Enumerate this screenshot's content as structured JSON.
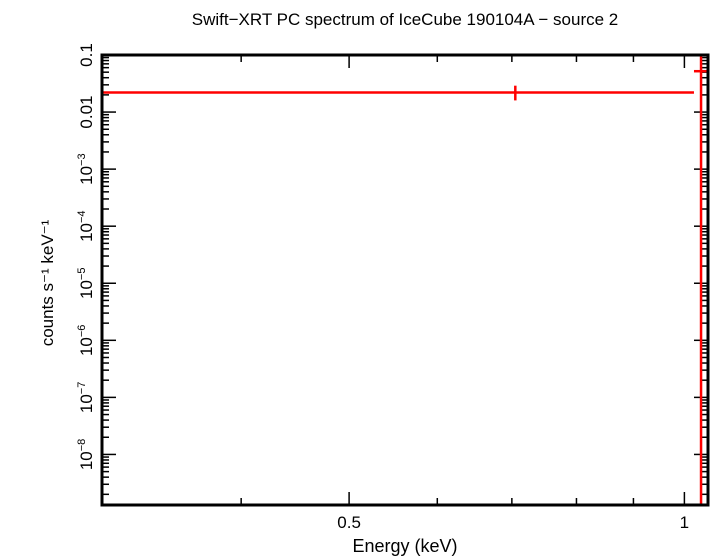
{
  "chart_data": {
    "type": "scatter",
    "title": "Swift−XRT PC spectrum of IceCube 190104A − source 2",
    "xlabel": "Energy (keV)",
    "ylabel": "counts s⁻¹ keV⁻¹",
    "x_scale": "log",
    "y_scale": "log",
    "xlim": [
      0.3,
      1.05
    ],
    "ylim": [
      1.3e-09,
      0.1
    ],
    "x_ticks": [
      {
        "value": 0.5,
        "label": "0.5"
      },
      {
        "value": 1,
        "label": "1"
      }
    ],
    "y_ticks": [
      {
        "value": 0.1,
        "base": "0.1",
        "exp": ""
      },
      {
        "value": 0.01,
        "base": "0.01",
        "exp": ""
      },
      {
        "value": 0.001,
        "base": "10",
        "exp": "−3"
      },
      {
        "value": 0.0001,
        "base": "10",
        "exp": "−4"
      },
      {
        "value": 1e-05,
        "base": "10",
        "exp": "−5"
      },
      {
        "value": 1e-06,
        "base": "10",
        "exp": "−6"
      },
      {
        "value": 1e-07,
        "base": "10",
        "exp": "−7"
      },
      {
        "value": 1e-08,
        "base": "10",
        "exp": "−8"
      }
    ],
    "series": [
      {
        "color": "#ff0000",
        "points": [
          {
            "x": 0.705,
            "y": 0.022,
            "xlo": 0.3,
            "xhi": 1.02,
            "ylo": 0.016,
            "yhi": 0.029
          },
          {
            "x": 1.035,
            "y": 0.052,
            "xlo": 1.02,
            "xhi": 1.05,
            "ylo": 1.3e-09,
            "yhi": 0.1
          }
        ]
      }
    ]
  }
}
